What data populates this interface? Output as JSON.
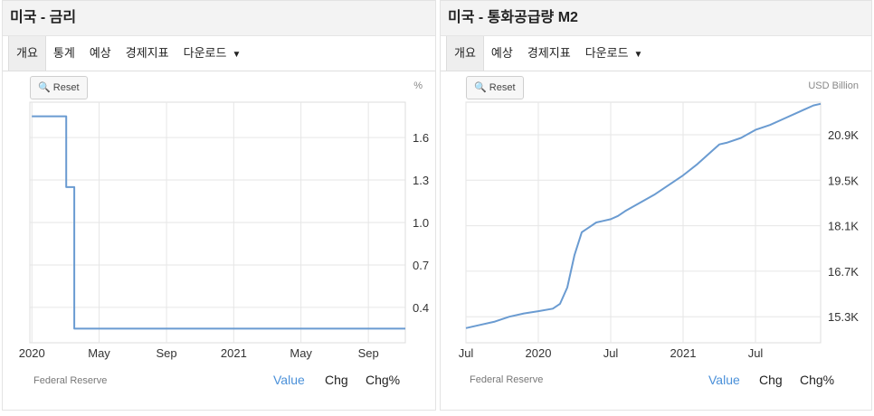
{
  "left": {
    "title": "미국 - 금리",
    "tabs": [
      {
        "label": "개요",
        "active": true
      },
      {
        "label": "통계",
        "active": false
      },
      {
        "label": "예상",
        "active": false
      },
      {
        "label": "경제지표",
        "active": false
      },
      {
        "label": "다운로드",
        "active": false
      }
    ],
    "reset_label": "Reset",
    "unit": "%",
    "source": "Federal Reserve",
    "toggles": [
      "Value",
      "Chg",
      "Chg%"
    ],
    "active_toggle": "Value"
  },
  "right": {
    "title": "미국 - 통화공급량 M2",
    "tabs": [
      {
        "label": "개요",
        "active": true
      },
      {
        "label": "예상",
        "active": false
      },
      {
        "label": "경제지표",
        "active": false
      },
      {
        "label": "다운로드",
        "active": false
      }
    ],
    "reset_label": "Reset",
    "unit": "USD Billion",
    "source": "Federal Reserve",
    "toggles": [
      "Value",
      "Chg",
      "Chg%"
    ],
    "active_toggle": "Value"
  },
  "colors": {
    "line": "#6a9bd1",
    "grid": "#e6e6e6",
    "active_toggle": "#4a90d9"
  },
  "chart_data": [
    {
      "type": "line",
      "title": "미국 - 금리",
      "ylabel": "%",
      "step": true,
      "x_range": [
        2019.99,
        2021.85
      ],
      "ylim": [
        0.15,
        1.85
      ],
      "yticks": [
        0.4,
        0.7,
        1.0,
        1.3,
        1.6
      ],
      "ytick_labels": [
        "0.4",
        "0.7",
        "1.0",
        "1.3",
        "1.6"
      ],
      "xticks": [
        2020.0,
        2020.333,
        2020.667,
        2021.0,
        2021.333,
        2021.667
      ],
      "xtick_labels": [
        "2020",
        "May",
        "Sep",
        "2021",
        "May",
        "Sep"
      ],
      "grid": true,
      "series": [
        {
          "x": [
            2020.0,
            2020.17,
            2020.17,
            2020.21,
            2020.21,
            2021.85
          ],
          "y": [
            1.75,
            1.75,
            1.25,
            1.25,
            0.25,
            0.25
          ]
        }
      ]
    },
    {
      "type": "line",
      "title": "미국 - 통화공급량 M2",
      "ylabel": "USD Billion",
      "x_range": [
        2019.5,
        2021.95
      ],
      "ylim": [
        14500,
        21900
      ],
      "yticks": [
        15300,
        16700,
        18100,
        19500,
        20900
      ],
      "ytick_labels": [
        "15.3K",
        "16.7K",
        "18.1K",
        "19.5K",
        "20.9K"
      ],
      "xticks": [
        2019.5,
        2020.0,
        2020.5,
        2021.0,
        2021.5
      ],
      "xtick_labels": [
        "Jul",
        "2020",
        "Jul",
        "2021",
        "Jul"
      ],
      "grid": true,
      "series": [
        {
          "x": [
            2019.5,
            2019.6,
            2019.7,
            2019.8,
            2019.9,
            2020.0,
            2020.1,
            2020.15,
            2020.2,
            2020.25,
            2020.3,
            2020.35,
            2020.4,
            2020.45,
            2020.5,
            2020.55,
            2020.6,
            2020.7,
            2020.8,
            2020.9,
            2021.0,
            2021.1,
            2021.2,
            2021.25,
            2021.3,
            2021.4,
            2021.5,
            2021.6,
            2021.7,
            2021.8,
            2021.9,
            2021.95
          ],
          "y": [
            14950,
            15050,
            15150,
            15300,
            15400,
            15470,
            15550,
            15700,
            16200,
            17200,
            17900,
            18050,
            18200,
            18250,
            18300,
            18400,
            18550,
            18800,
            19050,
            19350,
            19650,
            20000,
            20400,
            20600,
            20650,
            20800,
            21050,
            21200,
            21400,
            21600,
            21800,
            21850
          ]
        }
      ]
    }
  ]
}
